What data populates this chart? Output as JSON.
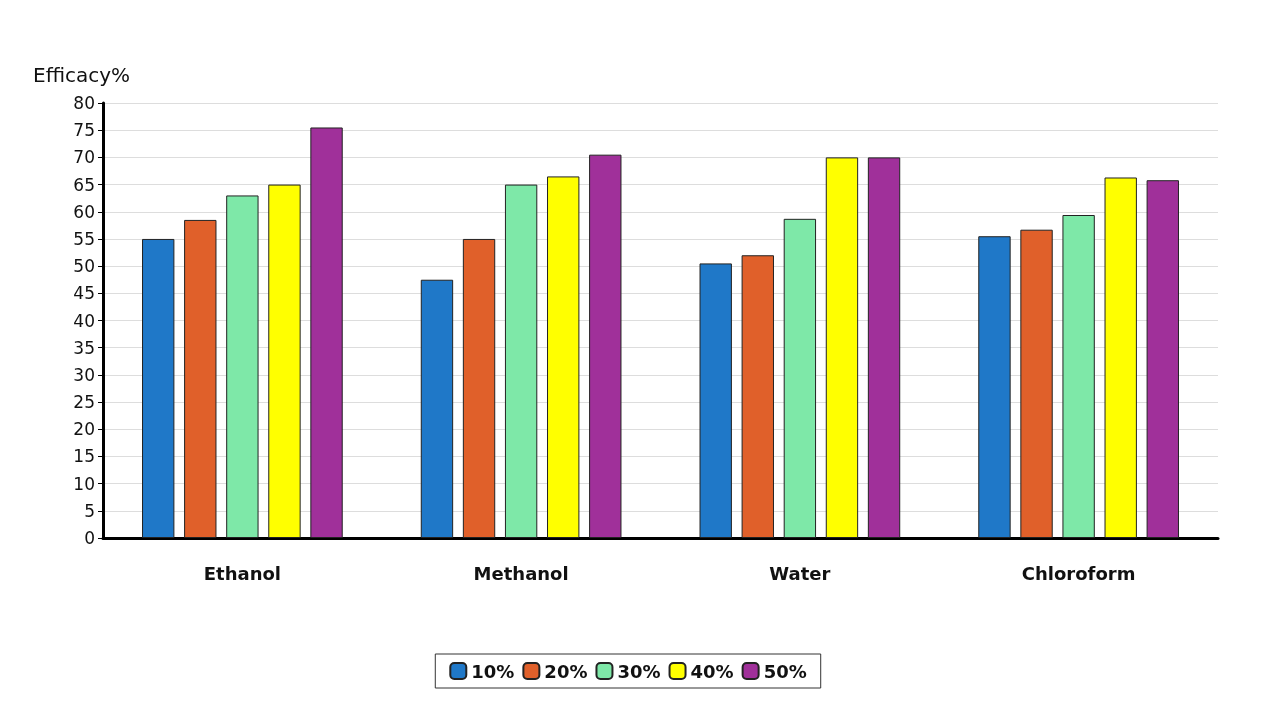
{
  "chart_data": {
    "type": "bar",
    "ylabel": "Efficacy%",
    "categories": [
      "Ethanol",
      "Methanol",
      "Water",
      "Chloroform"
    ],
    "series": [
      {
        "name": "10%",
        "color": "#1f78c8",
        "values": [
          55,
          47.5,
          50.5,
          55.5
        ]
      },
      {
        "name": "20%",
        "color": "#e0602a",
        "values": [
          58.5,
          55,
          52,
          56.7
        ]
      },
      {
        "name": "30%",
        "color": "#7ee8a8",
        "values": [
          63,
          65,
          58.7,
          59.4
        ]
      },
      {
        "name": "40%",
        "color": "#ffff00",
        "values": [
          65,
          66.5,
          70,
          66.3
        ]
      },
      {
        "name": "50%",
        "color": "#a0309a",
        "values": [
          75.5,
          70.5,
          70,
          65.8
        ]
      }
    ],
    "ylim": [
      0,
      80
    ],
    "yticks": [
      0,
      5,
      10,
      15,
      20,
      25,
      30,
      35,
      40,
      45,
      50,
      55,
      60,
      65,
      70,
      75,
      80
    ],
    "grid": "y",
    "legend": "bottom"
  }
}
